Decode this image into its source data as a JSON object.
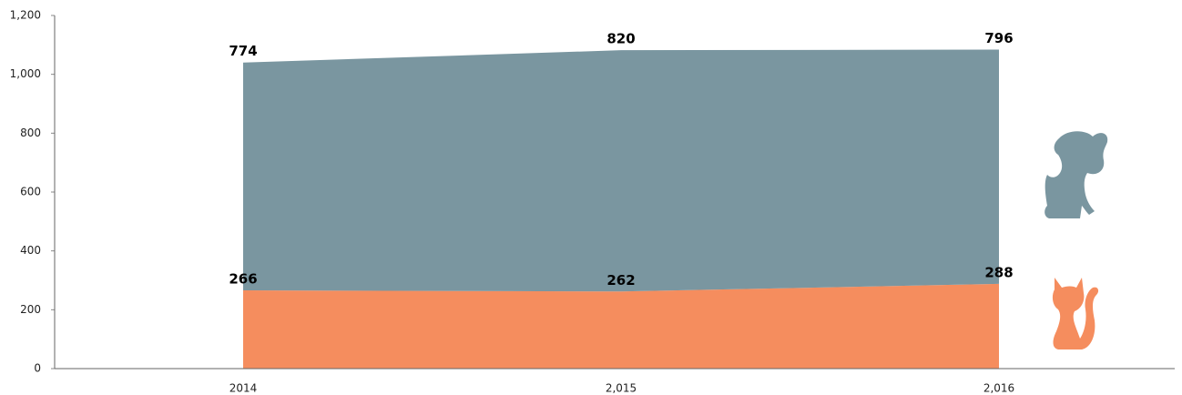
{
  "chart_data": {
    "type": "stacked_area",
    "categories": [
      "2014",
      "2,015",
      "2,016"
    ],
    "series": [
      {
        "color": "#f58d5e",
        "values": [
          266,
          262,
          288
        ]
      },
      {
        "color": "#7a96a0",
        "values": [
          774,
          820,
          796
        ]
      }
    ],
    "ylim": [
      0,
      1200
    ],
    "yticks": [
      0,
      200,
      400,
      600,
      800,
      {
        "value": 1000,
        "label": "1,000"
      },
      {
        "value": 1200,
        "label": "1,200"
      }
    ],
    "grid": false
  }
}
